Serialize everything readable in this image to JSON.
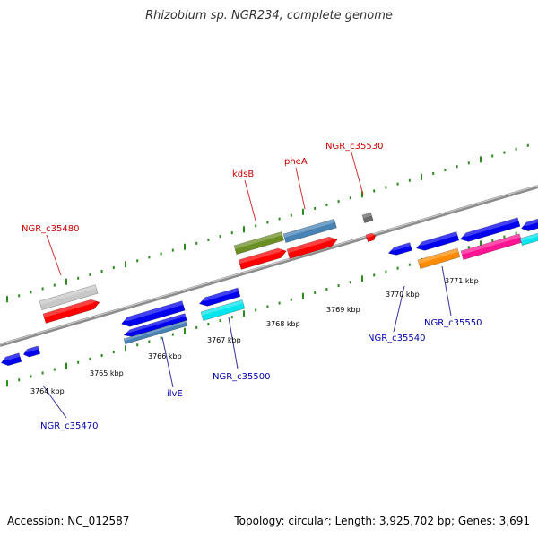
{
  "title": "Rhizobium sp. NGR234, complete genome",
  "footer": {
    "accession_label": "Accession: NC_012587",
    "info_label": "Topology: circular; Length: 3,925,702 bp; Genes: 3,691"
  },
  "colors": {
    "backbone": "#8c8c8c",
    "backbone_highlight": "#d2d2d2",
    "tick": "#2d8a1e",
    "forward_label": "#cc0000",
    "reverse_label": "#0000aa",
    "leader": "#333399",
    "leader_forward": "#cc3333"
  },
  "scale_labels": [
    {
      "text": "3764 kbp",
      "id": "3764"
    },
    {
      "text": "3765 kbp",
      "id": "3765"
    },
    {
      "text": "3766 kbp",
      "id": "3766"
    },
    {
      "text": "3767 kbp",
      "id": "3767"
    },
    {
      "text": "3768 kbp",
      "id": "3768"
    },
    {
      "text": "3769 kbp",
      "id": "3769"
    },
    {
      "text": "3770 kbp",
      "id": "3770"
    },
    {
      "text": "3771 kbp",
      "id": "3771"
    }
  ],
  "genes": {
    "forward": [
      {
        "name": "NGR_c35480",
        "color": "#c8c8c8",
        "arrow_color": "#ff0000"
      },
      {
        "name": "kdsB",
        "color": "#6b8e23"
      },
      {
        "name": "pheA",
        "color": "#4682b4"
      },
      {
        "name": "NGR_c35530",
        "color": "#696969"
      }
    ],
    "reverse": [
      {
        "name": "NGR_c35470",
        "color": "#0000ee"
      },
      {
        "name": "ilvE",
        "color": "#0000ee"
      },
      {
        "name": "NGR_c35500",
        "color": "#00e5ee"
      },
      {
        "name": "NGR_c35540",
        "color": "#0000ee"
      },
      {
        "name": "NGR_c35550",
        "color": "#ff8c00"
      }
    ],
    "extra_colors": [
      "#ff1493",
      "#4682b4",
      "#ff0000"
    ]
  }
}
